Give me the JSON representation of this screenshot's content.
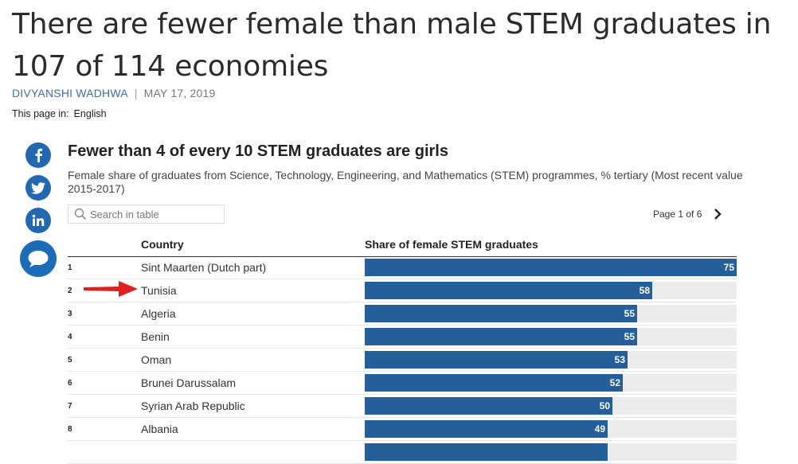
{
  "article": {
    "title": "There are fewer female than male STEM graduates in 107 of 114 economies",
    "author": "DIVYANSHI WADHWA",
    "separator": "|",
    "date": "MAY 17, 2019",
    "page_in_label": "This page in:",
    "language": "English"
  },
  "share": {
    "icons": [
      "facebook-icon",
      "twitter-icon",
      "linkedin-icon",
      "comment-icon"
    ],
    "brand_color": "#2168b0"
  },
  "search": {
    "placeholder": "Search in table"
  },
  "pagination": {
    "text": "Page 1 of 6"
  },
  "chart_data": {
    "type": "table",
    "title": "Fewer than 4 of every 10 STEM graduates are girls",
    "subtitle": "Female share of graduates from Science, Technology, Engineering, and Mathematics (STEM) programmes, % tertiary (Most recent value 2015-2017)",
    "columns": [
      "Country",
      "Share of female STEM graduates"
    ],
    "max": 75,
    "bar_color": "#245f9a",
    "rows": [
      {
        "rank": "1",
        "country": "Sint Maarten (Dutch part)",
        "value": 75
      },
      {
        "rank": "2",
        "country": "Tunisia",
        "value": 58
      },
      {
        "rank": "3",
        "country": "Algeria",
        "value": 55
      },
      {
        "rank": "4",
        "country": "Benin",
        "value": 55
      },
      {
        "rank": "5",
        "country": "Oman",
        "value": 53
      },
      {
        "rank": "6",
        "country": "Brunei Darussalam",
        "value": 52
      },
      {
        "rank": "7",
        "country": "Syrian Arab Republic",
        "value": 50
      },
      {
        "rank": "8",
        "country": "Albania",
        "value": 49
      }
    ],
    "annotation": {
      "type": "red-arrow",
      "points_to": "Tunisia",
      "color": "#e02020"
    }
  }
}
